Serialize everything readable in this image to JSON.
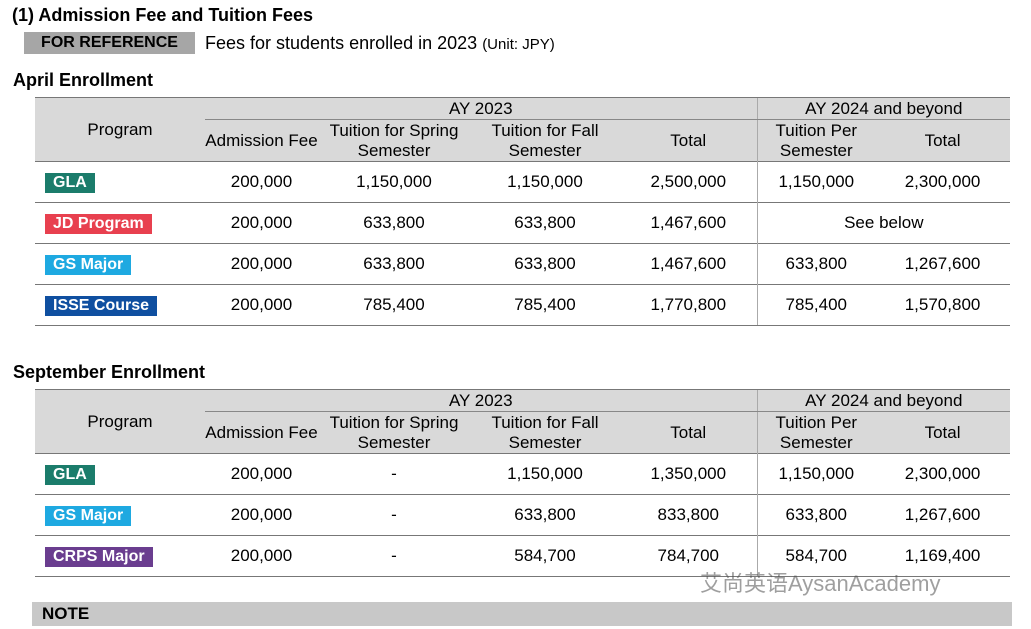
{
  "heading": "(1) Admission Fee and Tuition Fees",
  "reference": {
    "badge": "FOR REFERENCE",
    "text": "Fees for students enrolled in 2023",
    "unit": "(Unit: JPY)"
  },
  "tables": [
    {
      "title": "April Enrollment",
      "header": {
        "program": "Program",
        "group1": "AY 2023",
        "group2": "AY 2024 and beyond",
        "columns": [
          "Admission Fee",
          "Tuition for Spring Semester",
          "Tuition for Fall Semester",
          "Total",
          "Tuition Per Semester",
          "Total"
        ]
      },
      "rows": [
        {
          "program": "GLA",
          "color": "#1b7c6b",
          "cells": [
            "200,000",
            "1,150,000",
            "1,150,000",
            "2,500,000",
            "1,150,000",
            "2,300,000"
          ]
        },
        {
          "program": "JD Program",
          "color": "#e8404f",
          "cells": [
            "200,000",
            "633,800",
            "633,800",
            "1,467,600",
            "See below"
          ]
        },
        {
          "program": "GS Major",
          "color": "#1ea9e1",
          "cells": [
            "200,000",
            "633,800",
            "633,800",
            "1,467,600",
            "633,800",
            "1,267,600"
          ]
        },
        {
          "program": "ISSE Course",
          "color": "#0f4fa0",
          "cells": [
            "200,000",
            "785,400",
            "785,400",
            "1,770,800",
            "785,400",
            "1,570,800"
          ]
        }
      ]
    },
    {
      "title": "September Enrollment",
      "header": {
        "program": "Program",
        "group1": "AY 2023",
        "group2": "AY 2024 and beyond",
        "columns": [
          "Admission Fee",
          "Tuition for Spring Semester",
          "Tuition for Fall Semester",
          "Total",
          "Tuition Per Semester",
          "Total"
        ]
      },
      "rows": [
        {
          "program": "GLA",
          "color": "#1b7c6b",
          "cells": [
            "200,000",
            "-",
            "1,150,000",
            "1,350,000",
            "1,150,000",
            "2,300,000"
          ]
        },
        {
          "program": "GS Major",
          "color": "#1ea9e1",
          "cells": [
            "200,000",
            "-",
            "633,800",
            "833,800",
            "633,800",
            "1,267,600"
          ]
        },
        {
          "program": "CRPS Major",
          "color": "#6a3d8f",
          "cells": [
            "200,000",
            "-",
            "584,700",
            "784,700",
            "584,700",
            "1,169,400"
          ]
        }
      ]
    }
  ],
  "note": "NOTE",
  "watermark": "艾尚英语AysanAcademy"
}
